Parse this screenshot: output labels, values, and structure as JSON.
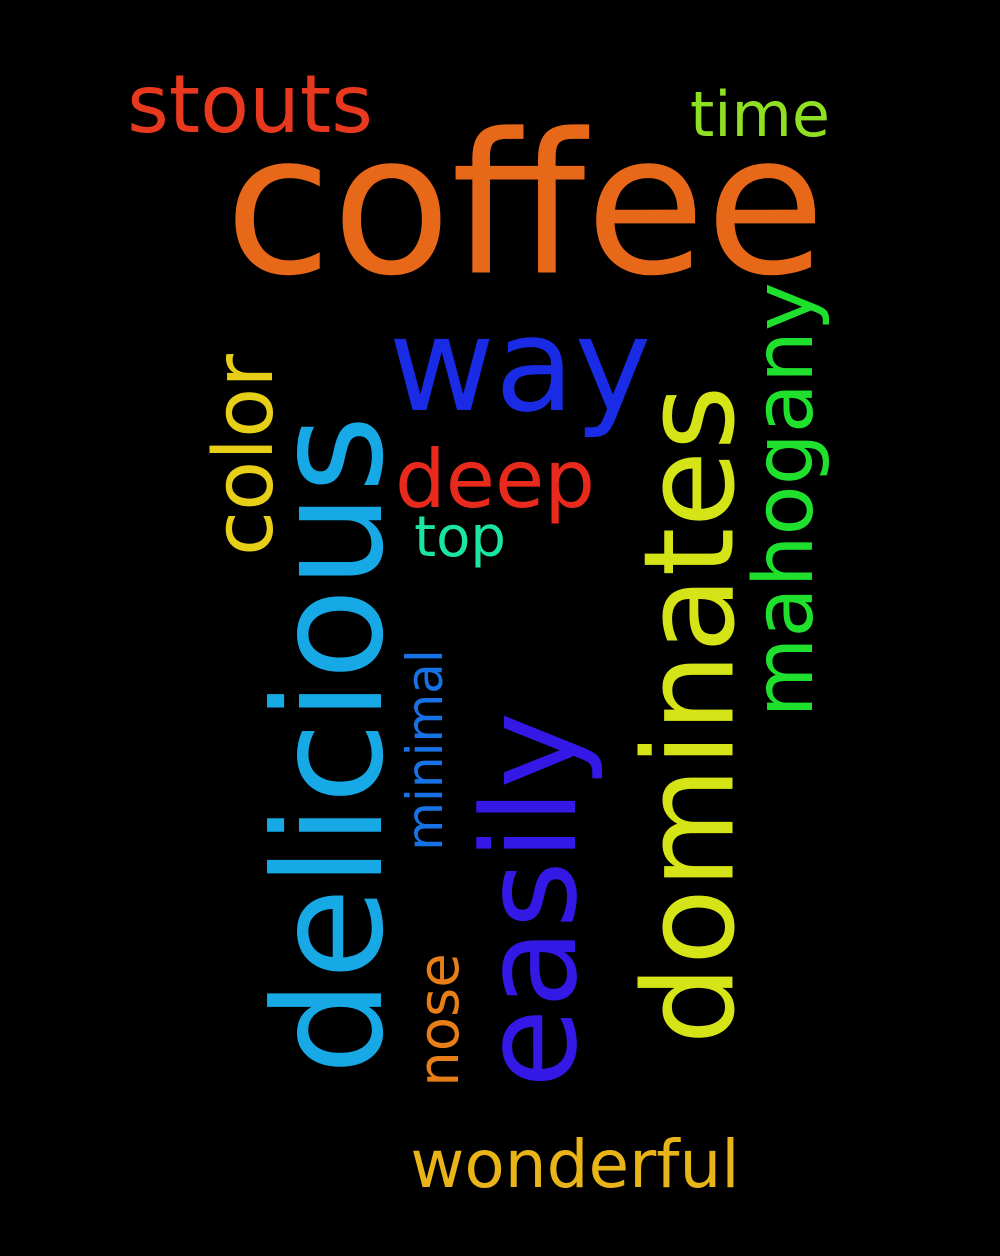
{
  "background": "#000000",
  "words": {
    "coffee": {
      "text": "coffee",
      "color": "#E8681A"
    },
    "stouts": {
      "text": "stouts",
      "color": "#E8391F"
    },
    "time": {
      "text": "time",
      "color": "#8FE022"
    },
    "delicious": {
      "text": "delicious",
      "color": "#17A8E6"
    },
    "way": {
      "text": "way",
      "color": "#1A2BE6"
    },
    "dominates": {
      "text": "dominates",
      "color": "#D4E417"
    },
    "easily": {
      "text": "easily",
      "color": "#3418E6"
    },
    "color": {
      "text": "color",
      "color": "#E8CF17"
    },
    "mahogany": {
      "text": "mahogany",
      "color": "#20E02E"
    },
    "deep": {
      "text": "deep",
      "color": "#E82A1C"
    },
    "top": {
      "text": "top",
      "color": "#1BE6A0"
    },
    "minimal": {
      "text": "minimal",
      "color": "#1772E6"
    },
    "nose": {
      "text": "nose",
      "color": "#E87E17"
    },
    "wonderful": {
      "text": "wonderful",
      "color": "#E8B417"
    }
  }
}
